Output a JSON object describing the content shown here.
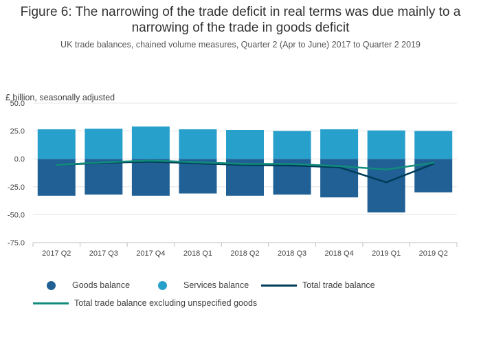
{
  "title": "Figure 6: The narrowing of the trade deficit in real terms was due mainly to a narrowing of the trade in goods deficit",
  "subtitle": "UK trade balances, chained volume measures, Quarter 2 (Apr to June) 2017 to Quarter 2 2019",
  "colors": {
    "goods": "#206095",
    "services": "#27a0cc",
    "total": "#003c57",
    "total_excl": "#118c7b",
    "grid": "#e6e6e6",
    "axis_text": "#414042"
  },
  "chart_data": {
    "type": "bar",
    "stacked": true,
    "ylabel": "£ billion, seasonally adjusted",
    "ylim": [
      -75,
      50
    ],
    "yticks": [
      50,
      25,
      0,
      -25,
      -50,
      -75
    ],
    "ytick_labels": [
      "50.0",
      "25.0",
      "0.0",
      "-25.0",
      "-50.0",
      "-75.0"
    ],
    "categories": [
      "2017 Q2",
      "2017 Q3",
      "2017 Q4",
      "2018 Q1",
      "2018 Q2",
      "2018 Q3",
      "2018 Q4",
      "2019 Q1",
      "2019 Q2"
    ],
    "grid": true,
    "legend_position": "bottom",
    "series": [
      {
        "name": "Goods balance",
        "kind": "bar",
        "values": [
          -33,
          -32,
          -33,
          -31,
          -33,
          -32,
          -34.5,
          -48,
          -30
        ]
      },
      {
        "name": "Services balance",
        "kind": "bar",
        "values": [
          26.5,
          27,
          29,
          26.5,
          26,
          25,
          26.5,
          25.5,
          25
        ]
      },
      {
        "name": "Total trade balance",
        "kind": "line",
        "values": [
          -5.5,
          -3.5,
          -2.5,
          -4,
          -5.5,
          -6,
          -7.5,
          -21,
          -4.5
        ]
      },
      {
        "name": "Total trade balance excluding unspecified goods",
        "kind": "line",
        "values": [
          -5.5,
          -3,
          -1.5,
          -3,
          -4.5,
          -4.5,
          -6.5,
          -9.5,
          -3.5
        ]
      }
    ]
  }
}
